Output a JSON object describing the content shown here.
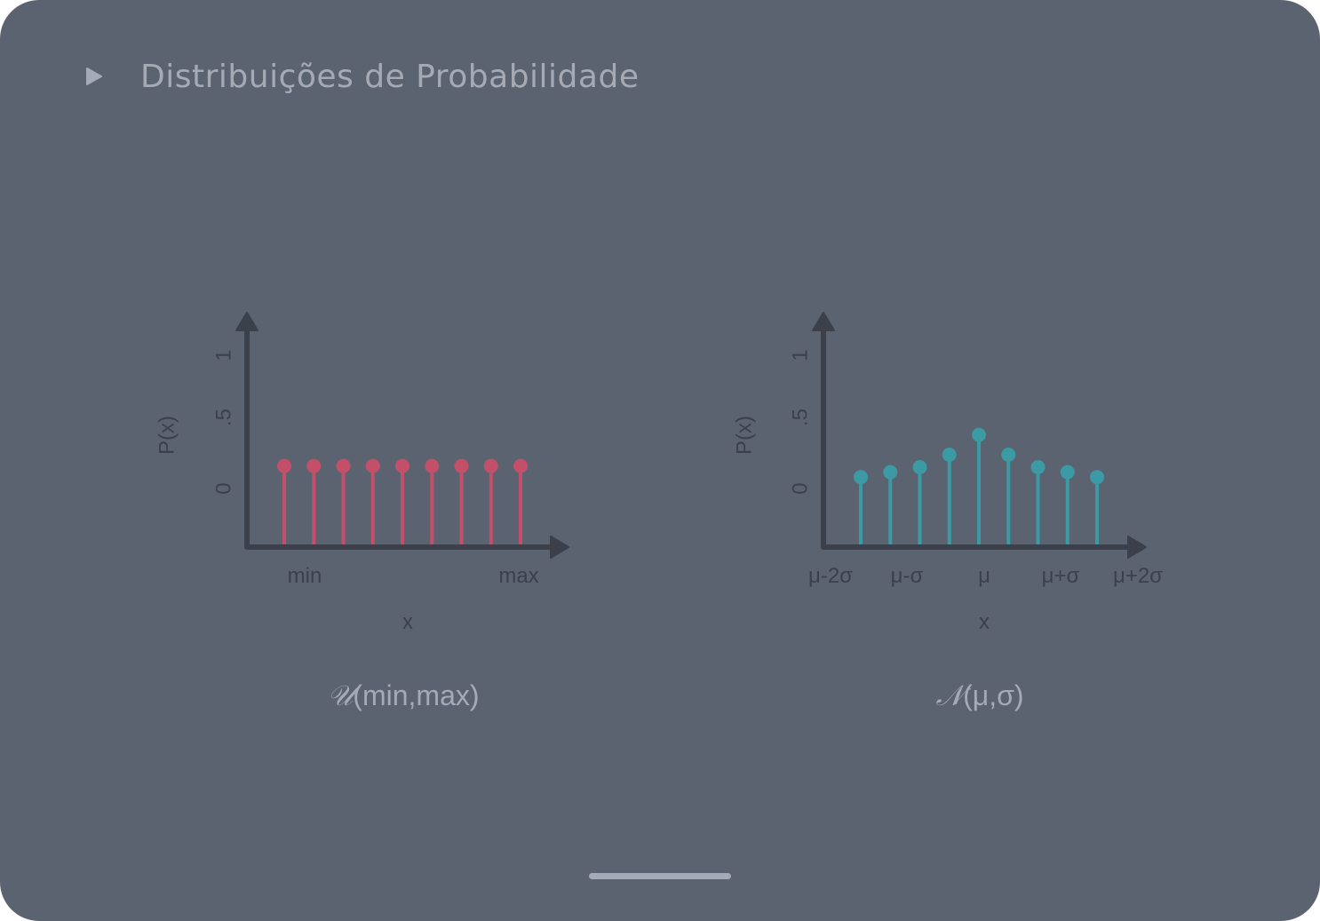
{
  "header": {
    "title": "Distribuições de Probabilidade",
    "icon": "play-icon"
  },
  "colors": {
    "background": "#5c6370",
    "axis": "#3b404b",
    "uniform": "#c44f68",
    "normal": "#3b9aa3",
    "text_muted": "#a5aab4"
  },
  "chart_data": [
    {
      "type": "stem",
      "title": "",
      "caption_symbol": "𝒰",
      "caption_args": "(min,max)",
      "xlabel": "x",
      "ylabel": "P(x)",
      "y_ticks": [
        "0",
        ".5",
        "1"
      ],
      "x_ticks": [
        "min",
        "max"
      ],
      "x": [
        1,
        2,
        3,
        4,
        5,
        6,
        7,
        8,
        9
      ],
      "values": [
        0.11,
        0.11,
        0.11,
        0.11,
        0.11,
        0.11,
        0.11,
        0.11,
        0.11
      ],
      "ylim": [
        0,
        1
      ]
    },
    {
      "type": "stem",
      "title": "",
      "caption_symbol": "𝒩",
      "caption_args": "(μ,σ)",
      "xlabel": "x",
      "ylabel": "P(x)",
      "y_ticks": [
        "0",
        ".5",
        "1"
      ],
      "x_ticks": [
        "μ-2σ",
        "μ-σ",
        "μ",
        "μ+σ",
        "μ+2σ"
      ],
      "x": [
        -4,
        -3,
        -2,
        -1,
        0,
        1,
        2,
        3,
        4
      ],
      "values": [
        0.02,
        0.06,
        0.1,
        0.2,
        0.36,
        0.2,
        0.1,
        0.06,
        0.02
      ],
      "ylim": [
        0,
        1
      ]
    }
  ]
}
